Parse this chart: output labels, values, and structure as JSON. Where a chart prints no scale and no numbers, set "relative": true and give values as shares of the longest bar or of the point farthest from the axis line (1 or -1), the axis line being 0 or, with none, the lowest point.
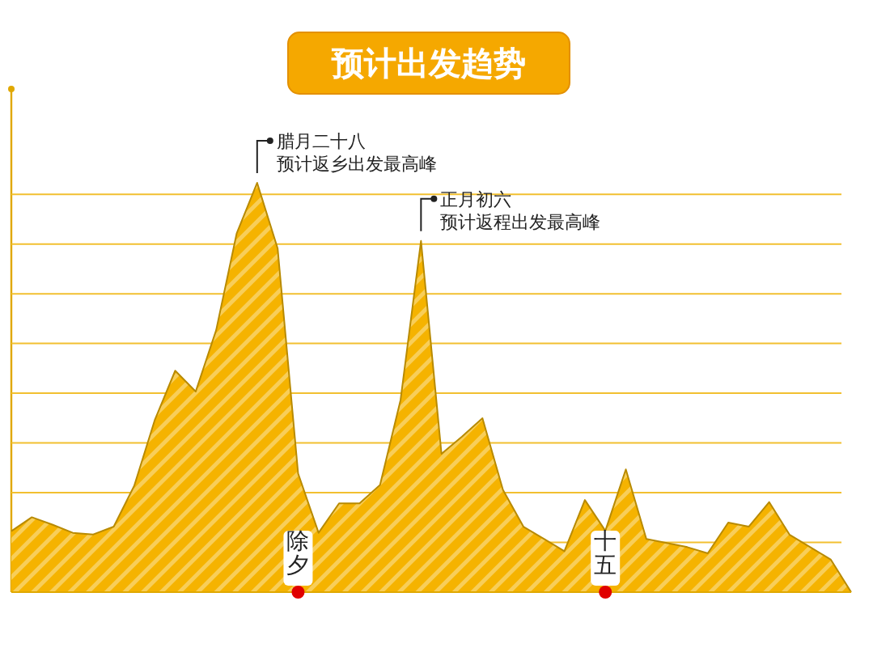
{
  "chart_data": {
    "type": "area",
    "title": "预计出发趋势",
    "relative": true,
    "ref_lines": [
      {
        "axis": "y",
        "value": 0.1215
      },
      {
        "axis": "y",
        "value": 0.243
      },
      {
        "axis": "y",
        "value": 0.3645
      },
      {
        "axis": "y",
        "value": 0.486
      },
      {
        "axis": "y",
        "value": 0.6075
      },
      {
        "axis": "y",
        "value": 0.729
      },
      {
        "axis": "y",
        "value": 0.8505
      },
      {
        "axis": "y",
        "value": 0.972
      }
    ],
    "categories": [
      null,
      null,
      null,
      null,
      null,
      null,
      null,
      null,
      null,
      null,
      null,
      null,
      null,
      null,
      null,
      null,
      null,
      null,
      null,
      null,
      null,
      null,
      null,
      null,
      null,
      null,
      null,
      null,
      null,
      null,
      null,
      null,
      null,
      null,
      null,
      null,
      null,
      null,
      null,
      null,
      null,
      null
    ],
    "series": [
      {
        "color": "#f5b300",
        "values": [
          0.149,
          0.183,
          0.165,
          0.145,
          0.141,
          0.16,
          0.26,
          0.42,
          0.541,
          0.49,
          0.64,
          0.876,
          1,
          0.84,
          0.29,
          0.145,
          0.217,
          0.217,
          0.262,
          0.469,
          0.858,
          0.338,
          0.38,
          0.425,
          0.25,
          0.16,
          0.13,
          0.1,
          0.225,
          0.15,
          0.3,
          0.13,
          0.12,
          0.11,
          0.095,
          0.17,
          0.16,
          0.22,
          0.14,
          0.11,
          0.08,
          0
        ]
      }
    ],
    "annotations": [
      "腊月二十八",
      "预计返乡出发最高峰",
      "正月初六",
      "预计返程出发最高峰",
      "除夕",
      "十五"
    ]
  }
}
